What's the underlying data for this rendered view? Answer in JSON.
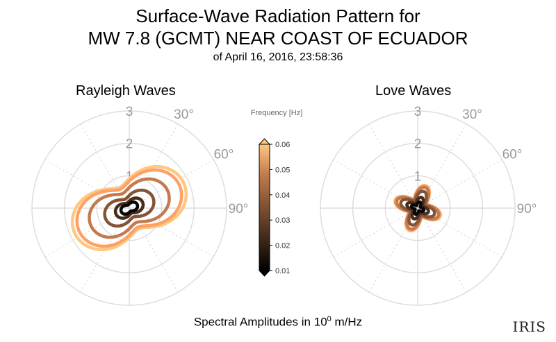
{
  "title": {
    "line1": "Surface-Wave Radiation Pattern for",
    "line2": "MW 7.8 (GCMT) NEAR COAST OF ECUADOR",
    "line3": "of April 16, 2016, 23:58:36"
  },
  "xlabel_prefix": "Spectral Amplitudes in 10",
  "xlabel_exp": "0",
  "xlabel_suffix": " m/Hz",
  "logo_text": "IRIS",
  "colors": {
    "grid": "#dddddd",
    "tick_text": "#999999"
  },
  "colorbar": {
    "label": "Frequency [Hz]",
    "ticks": [
      "0.06",
      "0.05",
      "0.04",
      "0.03",
      "0.02",
      "0.01"
    ],
    "range": [
      0.01,
      0.06
    ],
    "colormap": "copper"
  },
  "chart_data": [
    {
      "type": "polar-line",
      "title": "Rayleigh Waves",
      "radial_ticks": [
        "1",
        "2",
        "3"
      ],
      "rlim": [
        0,
        3
      ],
      "angle_ticks": [
        "30°",
        "60°",
        "90°"
      ],
      "theta_zero": "north",
      "theta_direction": "clockwise",
      "series": [
        {
          "freq": 0.01,
          "max_amp": 0.27
        },
        {
          "freq": 0.02,
          "max_amp": 0.45
        },
        {
          "freq": 0.03,
          "max_amp": 0.8
        },
        {
          "freq": 0.04,
          "max_amp": 1.3
        },
        {
          "freq": 0.05,
          "max_amp": 1.7
        },
        {
          "freq": 0.06,
          "max_amp": 1.85
        }
      ],
      "pattern": "two-lobe, lobes toward ~65° and ~245°"
    },
    {
      "type": "polar-line",
      "title": "Love Waves",
      "radial_ticks": [
        "1",
        "2",
        "3"
      ],
      "rlim": [
        0,
        3
      ],
      "angle_ticks": [
        "30°",
        "60°",
        "90°"
      ],
      "theta_zero": "north",
      "theta_direction": "clockwise",
      "series": [
        {
          "freq": 0.01,
          "max_amp": 0.2
        },
        {
          "freq": 0.02,
          "max_amp": 0.35
        },
        {
          "freq": 0.03,
          "max_amp": 0.55
        },
        {
          "freq": 0.04,
          "max_amp": 0.68
        },
        {
          "freq": 0.05,
          "max_amp": 0.72
        },
        {
          "freq": 0.06,
          "max_amp": 0.74
        }
      ],
      "pattern": "four-lobe, lobes toward ~20°, ~110°, ~200°, ~290°"
    }
  ]
}
